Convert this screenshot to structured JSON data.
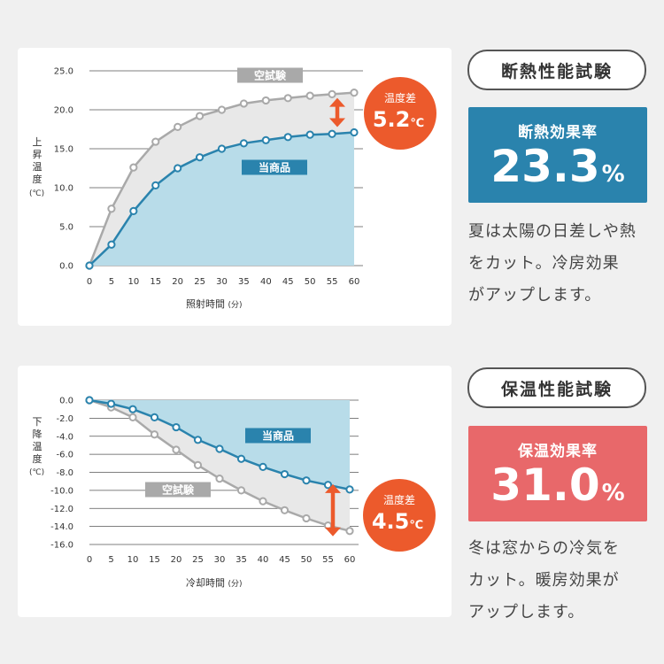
{
  "heat_test": {
    "badge": "断熱性能試験",
    "rate_title": "断熱効果率",
    "rate_value": "23.3",
    "rate_unit": "%",
    "description_lines": [
      "夏は太陽の日差しや熱",
      "をカット。冷房効果",
      "がアップします。"
    ],
    "y_axis_label_chars": [
      "上",
      "昇",
      "温",
      "度"
    ],
    "y_axis_unit": "(℃)",
    "x_axis_label": "照射時間",
    "x_axis_unit": "(分)",
    "diff_label": "温度差",
    "diff_value": "5.2",
    "diff_unit": "℃"
  },
  "warm_test": {
    "badge": "保温性能試験",
    "rate_title": "保温効果率",
    "rate_value": "31.0",
    "rate_unit": "%",
    "description_lines": [
      "冬は窓からの冷気を",
      "カット。暖房効果が",
      "アップします。"
    ],
    "y_axis_label_chars": [
      "下",
      "降",
      "温",
      "度"
    ],
    "y_axis_unit": "(℃)",
    "x_axis_label": "冷却時間",
    "x_axis_unit": "(分)",
    "diff_label": "温度差",
    "diff_value": "4.5",
    "diff_unit": "℃"
  },
  "colors": {
    "blue": "#2a83ad",
    "blue_fill": "#b8dce9",
    "gray": "#a9a9a9",
    "gray_fill": "#e8e8e8",
    "orange": "#ec5a2c",
    "heat_box": "#2a83ad",
    "warm_box": "#e8686a"
  },
  "chart_data": [
    {
      "type": "line",
      "x": [
        0,
        5,
        10,
        15,
        20,
        25,
        30,
        35,
        40,
        45,
        50,
        55,
        60
      ],
      "xlim": [
        0,
        60
      ],
      "ylim": [
        0,
        25
      ],
      "y_ticks": [
        "0.0",
        "5.0",
        "10.0",
        "15.0",
        "20.0",
        "25.0"
      ],
      "grid": true,
      "series": [
        {
          "name": "空試験",
          "values": [
            0,
            7.3,
            12.6,
            15.9,
            17.8,
            19.2,
            20.0,
            20.8,
            21.2,
            21.5,
            21.8,
            22.0,
            22.2
          ]
        },
        {
          "name": "当商品",
          "values": [
            0,
            2.7,
            7.0,
            10.3,
            12.5,
            13.9,
            15.0,
            15.7,
            16.1,
            16.5,
            16.8,
            16.9,
            17.1
          ]
        }
      ]
    },
    {
      "type": "line",
      "x": [
        0,
        5,
        10,
        15,
        20,
        25,
        30,
        35,
        40,
        45,
        50,
        55,
        60
      ],
      "xlim": [
        0,
        60
      ],
      "ylim": [
        -16,
        0
      ],
      "y_ticks": [
        "0.0",
        "-2.0",
        "-4.0",
        "-6.0",
        "-8.0",
        "-10.0",
        "-12.0",
        "-14.0",
        "-16.0"
      ],
      "grid": true,
      "series": [
        {
          "name": "当商品",
          "values": [
            0,
            -0.4,
            -1.0,
            -1.9,
            -3.0,
            -4.4,
            -5.4,
            -6.5,
            -7.4,
            -8.2,
            -8.9,
            -9.4,
            -9.9
          ]
        },
        {
          "name": "空試験",
          "values": [
            0,
            -0.8,
            -1.9,
            -3.8,
            -5.5,
            -7.2,
            -8.7,
            -10.0,
            -11.2,
            -12.2,
            -13.1,
            -13.9,
            -14.5
          ]
        }
      ]
    }
  ]
}
